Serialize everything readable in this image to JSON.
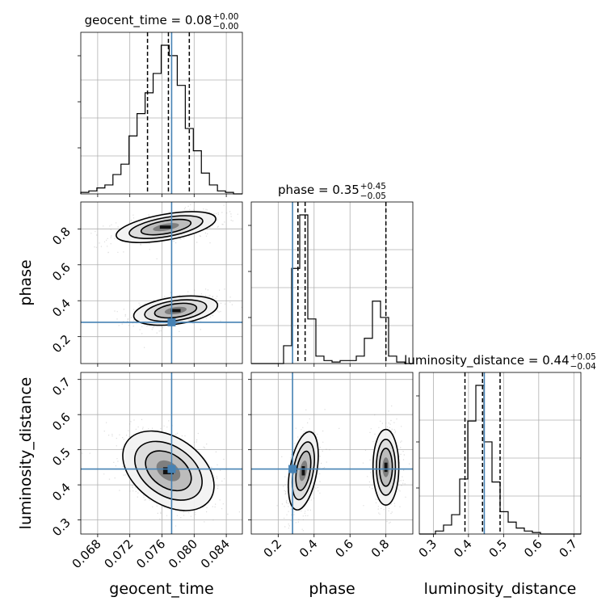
{
  "chart_data": {
    "type": "corner",
    "parameters": [
      "geocent_time",
      "phase",
      "luminosity_distance"
    ],
    "truths": {
      "geocent_time": 0.0772,
      "phase": 0.28,
      "luminosity_distance": 0.445
    },
    "truth_color": "#4682b4",
    "diag_titles": [
      {
        "param": "geocent_time",
        "prefix": "geocent_time = 0.08",
        "sup": "+0.00",
        "sub": "−0.00"
      },
      {
        "param": "phase",
        "prefix": "phase = 0.35",
        "sup": "+0.45",
        "sub": "−0.05"
      },
      {
        "param": "luminosity_distance",
        "prefix": "luminosity_distance = 0.44",
        "sup": "+0.05",
        "sub": "−0.04"
      }
    ],
    "axis_labels": {
      "geocent_time": "geocent_time",
      "phase": "phase",
      "luminosity_distance": "luminosity_distance"
    },
    "ranges": {
      "geocent_time": [
        0.0659,
        0.086
      ],
      "phase": [
        0.05,
        0.95
      ],
      "luminosity_distance": [
        0.26,
        0.72
      ]
    },
    "ticks": {
      "geocent_time": [
        "0.068",
        "0.072",
        "0.076",
        "0.080",
        "0.084"
      ],
      "phase": [
        "0.2",
        "0.4",
        "0.6",
        "0.8"
      ],
      "luminosity_distance": [
        "0.3",
        "0.4",
        "0.5",
        "0.6",
        "0.7"
      ]
    },
    "histograms": {
      "geocent_time": {
        "edges": [
          0.0659,
          0.0669,
          0.0679,
          0.0689,
          0.0699,
          0.0709,
          0.0719,
          0.0729,
          0.0739,
          0.0749,
          0.0759,
          0.0769,
          0.0779,
          0.0789,
          0.0799,
          0.0809,
          0.0819,
          0.0829,
          0.0839,
          0.0849,
          0.086
        ],
        "counts": [
          0.01,
          0.02,
          0.04,
          0.06,
          0.13,
          0.2,
          0.39,
          0.54,
          0.68,
          0.81,
          1.0,
          0.93,
          0.73,
          0.44,
          0.29,
          0.14,
          0.06,
          0.02,
          0.01,
          0.0
        ]
      },
      "phase": {
        "edges": [
          0.05,
          0.095,
          0.14,
          0.185,
          0.23,
          0.275,
          0.32,
          0.365,
          0.41,
          0.455,
          0.5,
          0.545,
          0.59,
          0.635,
          0.68,
          0.725,
          0.77,
          0.815,
          0.86,
          0.905,
          0.95
        ],
        "counts": [
          0.0,
          0.0,
          0.0,
          0.0,
          0.12,
          0.64,
          1.0,
          0.3,
          0.05,
          0.02,
          0.01,
          0.02,
          0.02,
          0.05,
          0.17,
          0.42,
          0.31,
          0.05,
          0.01,
          0.0
        ]
      },
      "luminosity_distance": {
        "edges": [
          0.26,
          0.283,
          0.306,
          0.329,
          0.352,
          0.375,
          0.398,
          0.421,
          0.444,
          0.467,
          0.49,
          0.513,
          0.536,
          0.559,
          0.582,
          0.605,
          0.628,
          0.651,
          0.674,
          0.697,
          0.72
        ],
        "counts": [
          0.0,
          0.0,
          0.02,
          0.06,
          0.13,
          0.37,
          0.76,
          1.0,
          0.62,
          0.35,
          0.15,
          0.08,
          0.04,
          0.02,
          0.01,
          0.0,
          0.0,
          0.0,
          0.0,
          0.0
        ]
      }
    },
    "quantiles": {
      "geocent_time": [
        0.0742,
        0.0768,
        0.0794
      ],
      "phase": [
        0.31,
        0.35,
        0.8
      ],
      "luminosity_distance": [
        0.39,
        0.44,
        0.49
      ]
    },
    "density_modes": [
      {
        "x": "geocent_time",
        "y": "phase",
        "cx": 0.0777,
        "cy": 0.345,
        "sx": 0.0028,
        "sy": 0.04,
        "angle": 8,
        "weight": 0.58
      },
      {
        "x": "geocent_time",
        "y": "phase",
        "cx": 0.0765,
        "cy": 0.81,
        "sx": 0.0035,
        "sy": 0.04,
        "angle": 10,
        "weight": 0.42
      },
      {
        "x": "geocent_time",
        "y": "luminosity_distance",
        "cx": 0.0768,
        "cy": 0.44,
        "sx": 0.003,
        "sy": 0.045,
        "angle": -35,
        "weight": 1.0
      },
      {
        "x": "phase",
        "y": "luminosity_distance",
        "cx": 0.34,
        "cy": 0.44,
        "sx": 0.04,
        "sy": 0.06,
        "angle": -10,
        "weight": 0.58
      },
      {
        "x": "phase",
        "y": "luminosity_distance",
        "cx": 0.8,
        "cy": 0.45,
        "sx": 0.04,
        "sy": 0.06,
        "angle": 0,
        "weight": 0.42
      }
    ]
  }
}
